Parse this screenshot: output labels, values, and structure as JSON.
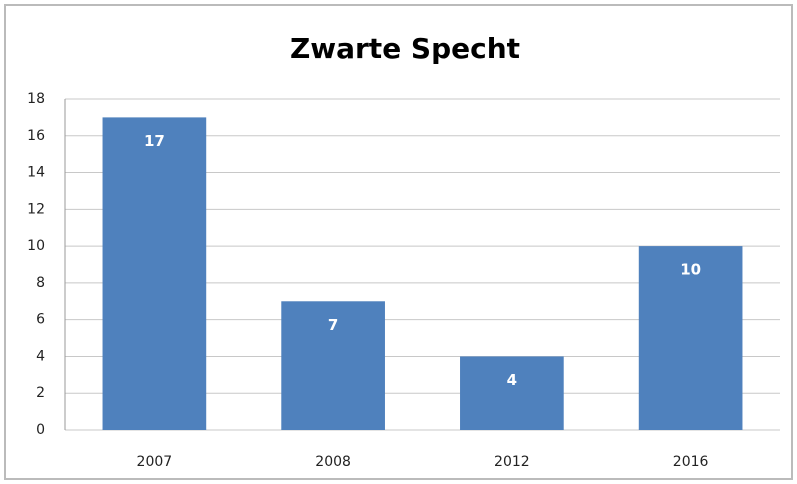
{
  "chart_data": {
    "type": "bar",
    "title": "Zwarte Specht",
    "categories": [
      "2007",
      "2008",
      "2012",
      "2016"
    ],
    "values": [
      17,
      7,
      4,
      10
    ],
    "color": "#4f81bd",
    "ylim": [
      0,
      18
    ],
    "yticks": [
      0,
      2,
      4,
      6,
      8,
      10,
      12,
      14,
      16,
      18
    ],
    "grid": true,
    "data_labels": true
  }
}
